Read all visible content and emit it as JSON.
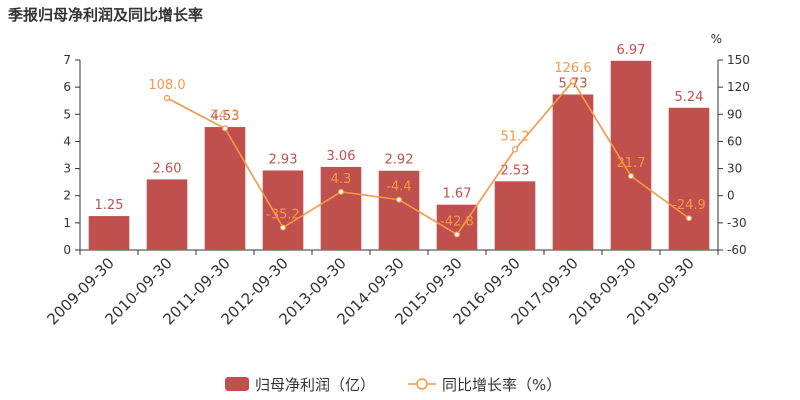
{
  "title": "季报归母净利润及同比增长率",
  "chart_data": {
    "type": "bar",
    "categories": [
      "2009-09-30",
      "2010-09-30",
      "2011-09-30",
      "2012-09-30",
      "2013-09-30",
      "2014-09-30",
      "2015-09-30",
      "2016-09-30",
      "2017-09-30",
      "2018-09-30",
      "2019-09-30"
    ],
    "series": [
      {
        "name": "归母净利润（亿）",
        "type": "bar",
        "axis": "left",
        "values": [
          1.25,
          2.6,
          4.53,
          2.93,
          3.06,
          2.92,
          1.67,
          2.53,
          5.73,
          6.97,
          5.24
        ],
        "labels": [
          "1.25",
          "2.60",
          "4.53",
          "2.93",
          "3.06",
          "2.92",
          "1.67",
          "2.53",
          "5.73",
          "6.97",
          "5.24"
        ],
        "color": "#c0504d"
      },
      {
        "name": "同比增长率（%）",
        "type": "line",
        "axis": "right",
        "values": [
          null,
          108.0,
          74.3,
          -35.2,
          4.3,
          -4.4,
          -42.8,
          51.2,
          126.6,
          21.7,
          -24.9
        ],
        "labels": [
          null,
          "108.0",
          "74.3",
          "-35.2",
          "4.3",
          "-4.4",
          "-42.8",
          "51.2",
          "126.6",
          "21.7",
          "-24.9"
        ],
        "color": "#f79646"
      }
    ],
    "y_left": {
      "min": 0,
      "max": 7,
      "ticks": [
        0,
        1,
        2,
        3,
        4,
        5,
        6,
        7
      ]
    },
    "y_right": {
      "min": -60,
      "max": 150,
      "ticks": [
        -60,
        -30,
        0,
        30,
        60,
        90,
        120,
        150
      ],
      "unit": "%"
    },
    "legend": {
      "placement": "bottom",
      "items": [
        "归母净利润（亿）",
        "同比增长率（%）"
      ]
    }
  }
}
